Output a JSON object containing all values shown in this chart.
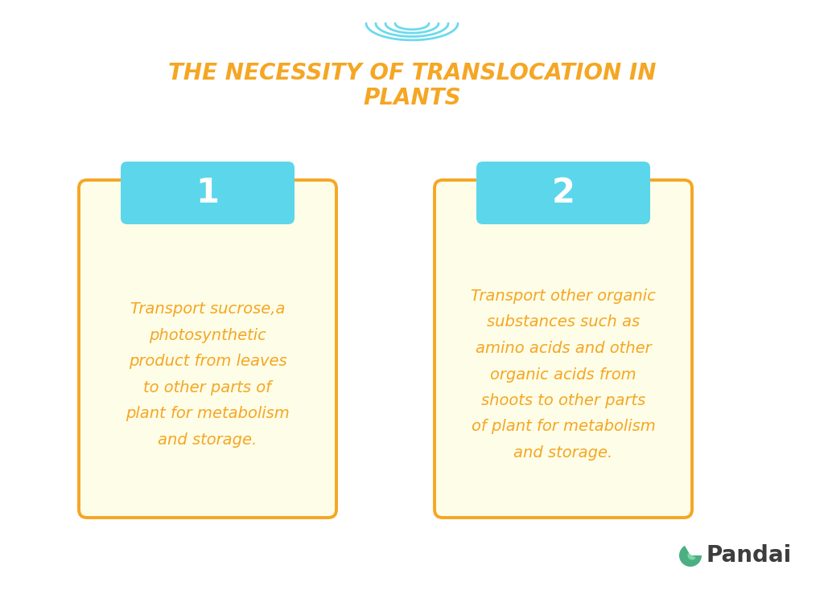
{
  "title_line1": "THE NECESSITY OF TRANSLOCATION IN",
  "title_line2": "PLANTS",
  "title_color": "#F5A623",
  "background_color": "#FFFFFF",
  "card_bg_color": "#FEFDE7",
  "card_border_color": "#F5A623",
  "tab_bg_color": "#5CD6EA",
  "tab_text_color": "#FFFFFF",
  "card_text_color": "#F5A623",
  "card1_number": "1",
  "card2_number": "2",
  "card1_text": "Transport sucrose,a\nphotosynthetic\nproduct from leaves\nto other parts of\nplant for metabolism\nand storage.",
  "card2_text": "Transport other organic\nsubstances such as\namino acids and other\norganic acids from\nshoots to other parts\nof plant for metabolism\nand storage.",
  "pandai_text": "Pandai",
  "pandai_text_color": "#3D3D3D",
  "wave_color": "#5CD6EA",
  "figsize": [
    10.24,
    7.39
  ],
  "dpi": 100
}
